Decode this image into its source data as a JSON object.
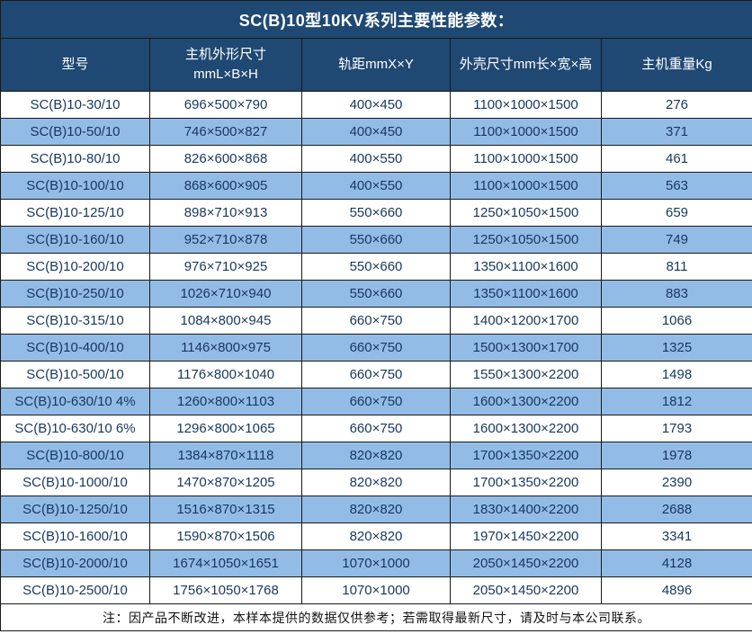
{
  "title": "SC(B)10型10KV系列主要性能参数：",
  "note": "注：因产品不断改进，本样本提供的数据仅供参考；若需取得最新尺寸，请及时与本公司联系。",
  "colors": {
    "header_bg": "#1F4873",
    "title_text": "#FFFFFF",
    "row_alt": "#92BCE6",
    "data_text": "#17375E",
    "border": "#1A1A1A",
    "note_text": "#111111"
  },
  "table": {
    "columns": [
      "型号",
      "主机外形尺寸\nmmL×B×H",
      "轨距mmX×Y",
      "外壳尺寸mm长×宽×高",
      "主机重量Kg"
    ],
    "rows": [
      [
        "SC(B)10-30/10",
        "696×500×790",
        "400×450",
        "1100×1000×1500",
        "276"
      ],
      [
        "SC(B)10-50/10",
        "746×500×827",
        "400×450",
        "1100×1000×1500",
        "371"
      ],
      [
        "SC(B)10-80/10",
        "826×600×868",
        "400×550",
        "1100×1000×1500",
        "461"
      ],
      [
        "SC(B)10-100/10",
        "868×600×905",
        "400×550",
        "1100×1000×1500",
        "563"
      ],
      [
        "SC(B)10-125/10",
        "898×710×913",
        "550×660",
        "1250×1050×1500",
        "659"
      ],
      [
        "SC(B)10-160/10",
        "952×710×878",
        "550×660",
        "1250×1050×1500",
        "749"
      ],
      [
        "SC(B)10-200/10",
        "976×710×925",
        "550×660",
        "1350×1100×1600",
        "811"
      ],
      [
        "SC(B)10-250/10",
        "1026×710×940",
        "550×660",
        "1350×1100×1600",
        "883"
      ],
      [
        "SC(B)10-315/10",
        "1084×800×945",
        "660×750",
        "1400×1200×1700",
        "1066"
      ],
      [
        "SC(B)10-400/10",
        "1146×800×975",
        "660×750",
        "1500×1300×1700",
        "1325"
      ],
      [
        "SC(B)10-500/10",
        "1176×800×1040",
        "660×750",
        "1550×1300×2200",
        "1498"
      ],
      [
        "SC(B)10-630/10 4%",
        "1260×800×1103",
        "660×750",
        "1600×1300×2200",
        "1812"
      ],
      [
        "SC(B)10-630/10 6%",
        "1296×800×1065",
        "660×750",
        "1600×1300×2200",
        "1793"
      ],
      [
        "SC(B)10-800/10",
        "1384×870×1118",
        "820×820",
        "1700×1350×2200",
        "1978"
      ],
      [
        "SC(B)10-1000/10",
        "1470×870×1205",
        "820×820",
        "1700×1350×2200",
        "2390"
      ],
      [
        "SC(B)10-1250/10",
        "1516×870×1315",
        "820×820",
        "1830×1400×2200",
        "2688"
      ],
      [
        "SC(B)10-1600/10",
        "1590×870×1506",
        "820×820",
        "1970×1450×2200",
        "3341"
      ],
      [
        "SC(B)10-2000/10",
        "1674×1050×1651",
        "1070×1000",
        "2050×1450×2200",
        "4128"
      ],
      [
        "SC(B)10-2500/10",
        "1756×1050×1768",
        "1070×1000",
        "2050×1450×2200",
        "4896"
      ]
    ]
  }
}
